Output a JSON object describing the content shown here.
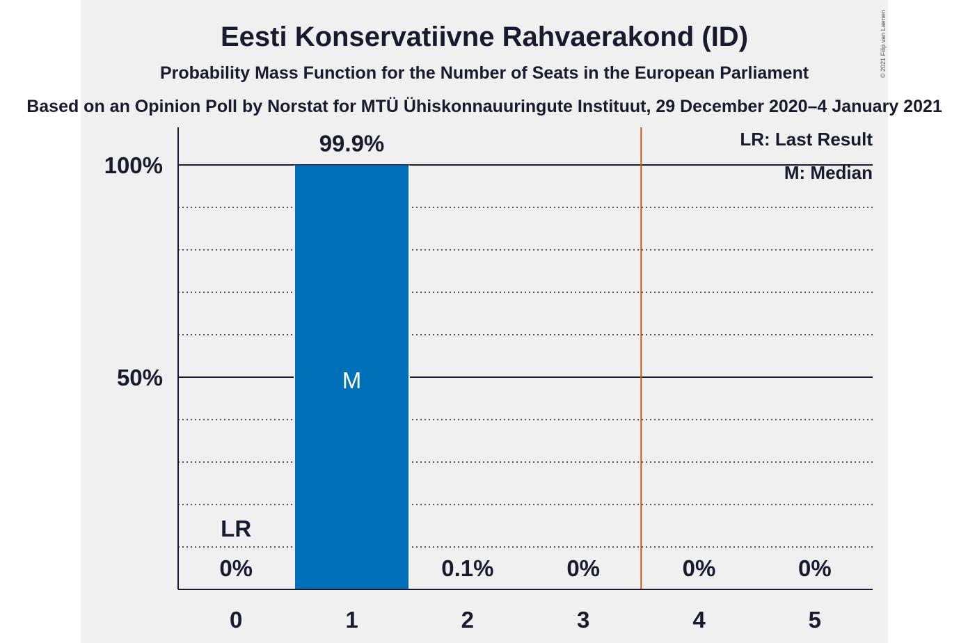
{
  "header": {
    "title": "Eesti Konservatiivne Rahvaerakond (ID)",
    "subtitle": "Probability Mass Function for the Number of Seats in the European Parliament",
    "source": "Based on an Opinion Poll by Norstat for MTÜ Ühiskonnauuringute Instituut, 29 December 2020–4 January 2021",
    "copyright": "© 2021 Filip van Laenen"
  },
  "legend": {
    "last_result": "LR: Last Result",
    "median": "M: Median"
  },
  "colors": {
    "bar": "#0070b8",
    "last_result_line": "#c55a11",
    "background": "#f0f0f0",
    "text": "#1a1a2e"
  },
  "chart_data": {
    "type": "bar",
    "categories": [
      "0",
      "1",
      "2",
      "3",
      "4",
      "5"
    ],
    "values": [
      0,
      99.9,
      0.1,
      0,
      0,
      0
    ],
    "data_labels": [
      "0%",
      "99.9%",
      "0.1%",
      "0%",
      "0%",
      "0%"
    ],
    "y_ticks": [
      {
        "value": 50,
        "label": "50%"
      },
      {
        "value": 100,
        "label": "100%"
      }
    ],
    "ylim": [
      0,
      110
    ],
    "minor_gridlines_every": 10,
    "last_result_seats": 0,
    "last_result_label": "LR",
    "last_result_line_between": [
      3,
      4
    ],
    "median_seats": 1,
    "median_label": "M",
    "legend_position": "top-right"
  }
}
